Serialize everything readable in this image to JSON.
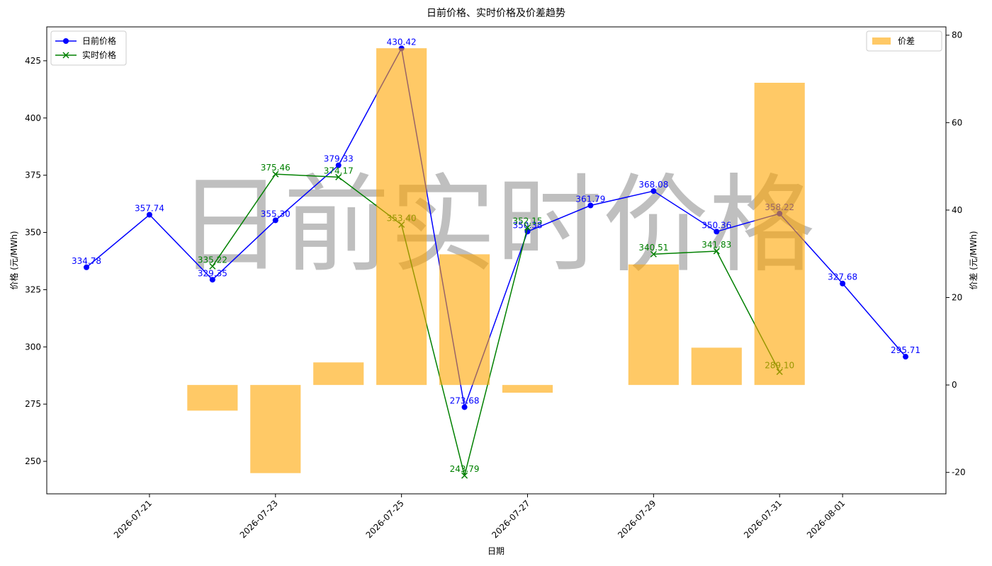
{
  "chart_data": {
    "type": "line",
    "title": "日前价格、实时价格及价差趋势",
    "watermark": "日前实时价格",
    "xlabel": "日期",
    "ylabel": "价格 (元/MWh)",
    "y2label": "价差 (元/MWh)",
    "x": [
      "2026-07-20",
      "2026-07-21",
      "2026-07-22",
      "2026-07-23",
      "2026-07-24",
      "2026-07-25",
      "2026-07-26",
      "2026-07-27",
      "2026-07-28",
      "2026-07-29",
      "2026-07-30",
      "2026-07-31",
      "2026-08-01",
      "2026-08-02"
    ],
    "xlim": [
      "2026-07-19T08:53",
      "2026-08-02T15:22"
    ],
    "xticks": [
      "2026-07-21",
      "2026-07-23",
      "2026-07-25",
      "2026-07-27",
      "2026-07-29",
      "2026-07-31",
      "2026-08-01"
    ],
    "ylim": [
      235.8,
      439.8
    ],
    "yticks": [
      250,
      275,
      300,
      325,
      350,
      375,
      400,
      425
    ],
    "y2lim": [
      -24.9,
      81.9
    ],
    "y2ticks": [
      -20,
      0,
      20,
      40,
      60,
      80
    ],
    "legend": {
      "y": "upper left",
      "y2": "upper right"
    },
    "series": [
      {
        "name": "日前价格",
        "type": "line",
        "marker": "o",
        "color": "#0000ff",
        "values": [
          334.78,
          357.74,
          329.35,
          355.3,
          379.33,
          430.42,
          273.68,
          350.38,
          361.79,
          368.08,
          350.36,
          358.22,
          327.68,
          295.71
        ],
        "value_labels": [
          "334.78",
          "357.74",
          "329.35",
          "355.30",
          "379.33",
          "430.42",
          "273.68",
          "350.38",
          "361.79",
          "368.08",
          "350.36",
          "358.22",
          "327.68",
          "295.71"
        ]
      },
      {
        "name": "实时价格",
        "type": "line",
        "marker": "x",
        "color": "#008000",
        "values": [
          null,
          null,
          335.22,
          375.46,
          374.17,
          353.4,
          243.79,
          352.15,
          null,
          340.51,
          341.83,
          289.1,
          null,
          null
        ],
        "value_labels": [
          null,
          null,
          "335.22",
          "375.46",
          "374.17",
          "353.40",
          "243.79",
          "352.15",
          null,
          "340.51",
          "341.83",
          "289.10",
          null,
          null
        ]
      },
      {
        "name": "价差",
        "type": "bar",
        "axis": "y2",
        "color": "#ffa500",
        "values": [
          null,
          null,
          -5.87,
          -20.16,
          5.16,
          77.02,
          29.89,
          -1.77,
          null,
          27.57,
          8.53,
          69.12,
          null,
          null
        ]
      }
    ]
  }
}
